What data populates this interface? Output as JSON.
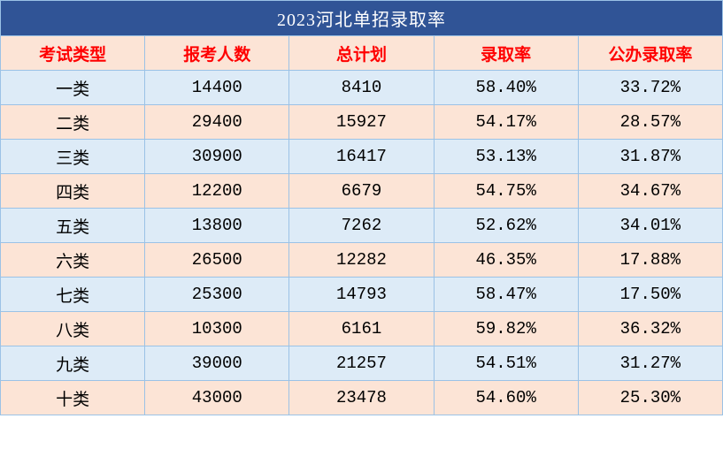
{
  "table": {
    "title": "2023河北单招录取率",
    "columns": [
      "考试类型",
      "报考人数",
      "总计划",
      "录取率",
      "公办录取率"
    ],
    "rows": [
      [
        "一类",
        "14400",
        "8410",
        "58.40%",
        "33.72%"
      ],
      [
        "二类",
        "29400",
        "15927",
        "54.17%",
        "28.57%"
      ],
      [
        "三类",
        "30900",
        "16417",
        "53.13%",
        "31.87%"
      ],
      [
        "四类",
        "12200",
        "6679",
        "54.75%",
        "34.67%"
      ],
      [
        "五类",
        "13800",
        "7262",
        "52.62%",
        "34.01%"
      ],
      [
        "六类",
        "26500",
        "12282",
        "46.35%",
        "17.88%"
      ],
      [
        "七类",
        "25300",
        "14793",
        "58.47%",
        "17.50%"
      ],
      [
        "八类",
        "10300",
        "6161",
        "59.82%",
        "36.32%"
      ],
      [
        "九类",
        "39000",
        "21257",
        "54.51%",
        "31.27%"
      ],
      [
        "十类",
        "43000",
        "23478",
        "54.60%",
        "25.30%"
      ]
    ],
    "colors": {
      "title_bg": "#305496",
      "title_text": "#ffffff",
      "header_bg": "#fce4d6",
      "header_text": "#ff0000",
      "row_odd_bg": "#ddebf7",
      "row_even_bg": "#fce4d6",
      "border": "#9bc2e6",
      "cell_text": "#000000"
    },
    "font_sizes": {
      "title": 20,
      "header": 19,
      "cell": 19
    },
    "column_widths_pct": [
      20,
      20,
      20,
      20,
      20
    ]
  }
}
